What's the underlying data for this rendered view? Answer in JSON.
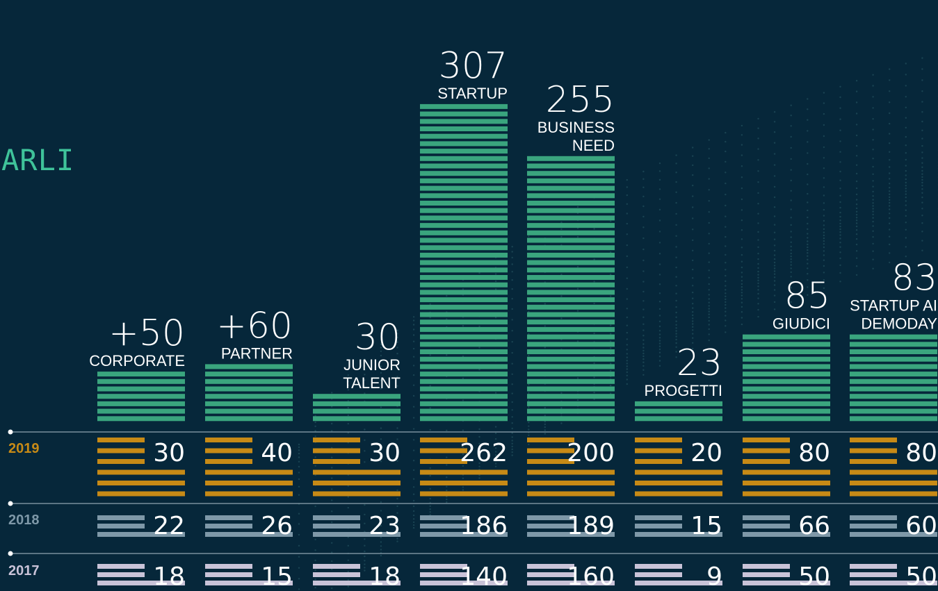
{
  "page_title_fragment": "ARLI",
  "colors": {
    "background": "#06273a",
    "total_bars": "#3aa57e",
    "year_2019": "#c78a16",
    "year_2018": "#7e98a8",
    "year_2017": "#c9c3d8",
    "text": "#ffffff",
    "accent_title": "#3fc39a"
  },
  "chart_data": {
    "type": "bar",
    "categories": [
      {
        "total": "+50",
        "label": [
          "CORPORATE"
        ]
      },
      {
        "total": "+60",
        "label": [
          "PARTNER"
        ]
      },
      {
        "total": "30",
        "label": [
          "JUNIOR",
          "TALENT"
        ]
      },
      {
        "total": "307",
        "label": [
          "STARTUP"
        ]
      },
      {
        "total": "255",
        "label": [
          "BUSINESS",
          "NEED"
        ]
      },
      {
        "total": "23",
        "label": [
          "PROGETTI"
        ]
      },
      {
        "total": "85",
        "label": [
          "GIUDICI"
        ]
      },
      {
        "total": "83",
        "label": [
          "STARTUP AI",
          "DEMODAY"
        ]
      }
    ],
    "totals": [
      50,
      60,
      30,
      307,
      255,
      23,
      85,
      83
    ],
    "series": [
      {
        "name": "2019",
        "values": [
          30,
          40,
          30,
          262,
          200,
          20,
          80,
          80
        ]
      },
      {
        "name": "2018",
        "values": [
          22,
          26,
          23,
          186,
          189,
          15,
          66,
          60
        ]
      },
      {
        "name": "2017",
        "values": [
          18,
          15,
          18,
          140,
          160,
          9,
          50,
          50
        ]
      }
    ]
  }
}
